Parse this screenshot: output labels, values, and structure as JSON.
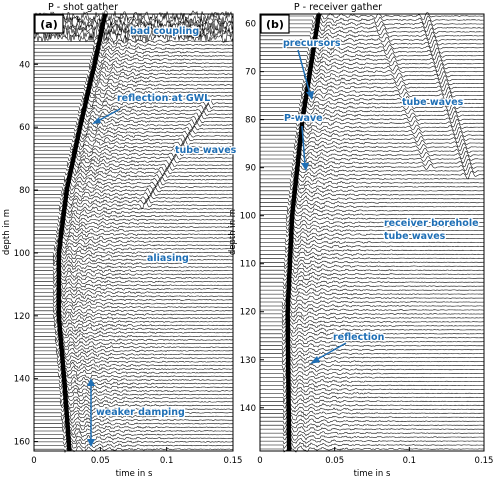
{
  "chart_data": [
    {
      "type": "wiggle",
      "panel_label": "(a)",
      "title": "P - shot gather",
      "xlabel": "time in s",
      "ylabel": "depth in m",
      "xlim": [
        0,
        0.15
      ],
      "ylim": [
        163,
        24
      ],
      "xticks": [
        "0",
        "0.05",
        "0.1",
        "0.15"
      ],
      "yticks": [
        40,
        60,
        80,
        100,
        120,
        140,
        160
      ],
      "first_arrival": {
        "depth": [
          24,
          40,
          60,
          80,
          100,
          120,
          140,
          163
        ],
        "time": [
          0.052,
          0.044,
          0.033,
          0.023,
          0.017,
          0.017,
          0.021,
          0.025
        ]
      },
      "annotations": [
        {
          "text": "bad coupling",
          "depth": 28,
          "time": 0.068
        },
        {
          "text": "reflection at GWL",
          "depth": 55,
          "time": 0.06
        },
        {
          "text": "tube waves",
          "depth": 71,
          "time": 0.102
        },
        {
          "text": "aliasing",
          "depth": 105,
          "time": 0.085
        },
        {
          "text": "weaker damping",
          "depth": 150,
          "time": 0.05
        }
      ]
    },
    {
      "type": "wiggle",
      "panel_label": "(b)",
      "title": "P - receiver gather",
      "xlabel": "time in s",
      "ylabel": "depth in m",
      "xlim": [
        0,
        0.15
      ],
      "ylim": [
        149,
        58
      ],
      "xticks": [
        "0",
        "0.05",
        "0.1",
        "0.15"
      ],
      "yticks": [
        60,
        70,
        80,
        90,
        100,
        110,
        120,
        130,
        140
      ],
      "first_arrival": {
        "depth": [
          58,
          80,
          100,
          120,
          149
        ],
        "time": [
          0.038,
          0.027,
          0.02,
          0.017,
          0.018
        ]
      },
      "annotations": [
        {
          "text": "precursors",
          "depth": 63,
          "time": 0.03
        },
        {
          "text": "P-wave",
          "depth": 79,
          "time": 0.019
        },
        {
          "text": "tube waves",
          "depth": 75,
          "time": 0.113
        },
        {
          "text": "receiver borehole",
          "depth": 102,
          "time": 0.113
        },
        {
          "text": "tube waves",
          "depth": 106,
          "time": 0.097
        },
        {
          "text": "reflection",
          "depth": 127,
          "time": 0.058
        }
      ]
    }
  ]
}
